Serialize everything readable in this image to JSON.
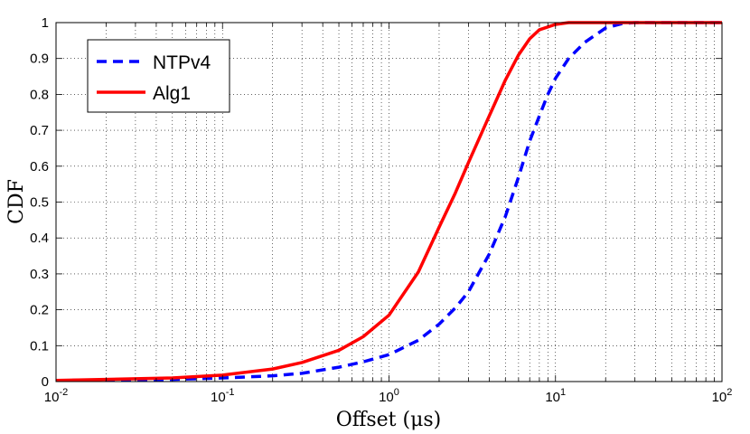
{
  "chart_data": {
    "type": "line",
    "title": "",
    "xlabel": "Offset (μs)",
    "ylabel": "CDF",
    "xscale": "log",
    "xlim": [
      0.01,
      100
    ],
    "ylim": [
      0,
      1
    ],
    "grid": true,
    "legend_position": "top-left",
    "x_ticks": [
      {
        "value": 0.01,
        "base": "10",
        "exp": "-2"
      },
      {
        "value": 0.1,
        "base": "10",
        "exp": "-1"
      },
      {
        "value": 1,
        "base": "10",
        "exp": "0"
      },
      {
        "value": 10,
        "base": "10",
        "exp": "1"
      },
      {
        "value": 100,
        "base": "10",
        "exp": "2"
      }
    ],
    "y_ticks": [
      "0",
      "0.1",
      "0.2",
      "0.3",
      "0.4",
      "0.5",
      "0.6",
      "0.7",
      "0.8",
      "0.9",
      "1"
    ],
    "series": [
      {
        "name": "NTPv4",
        "color": "#0000ff",
        "style": "dashed",
        "x": [
          0.01,
          0.05,
          0.1,
          0.2,
          0.3,
          0.5,
          0.7,
          1,
          1.5,
          2,
          2.5,
          3,
          4,
          5,
          6,
          7,
          8,
          9,
          10,
          12,
          15,
          20,
          25,
          30,
          100
        ],
        "y": [
          0.003,
          0.006,
          0.01,
          0.016,
          0.023,
          0.04,
          0.055,
          0.075,
          0.115,
          0.16,
          0.205,
          0.25,
          0.355,
          0.46,
          0.57,
          0.67,
          0.74,
          0.8,
          0.845,
          0.9,
          0.945,
          0.985,
          0.997,
          1.0,
          1.0
        ]
      },
      {
        "name": "Alg1",
        "color": "#ff0000",
        "style": "solid",
        "x": [
          0.01,
          0.05,
          0.1,
          0.2,
          0.3,
          0.5,
          0.7,
          1,
          1.5,
          2,
          2.5,
          3,
          4,
          5,
          6,
          7,
          8,
          10,
          12,
          100
        ],
        "y": [
          0.003,
          0.01,
          0.018,
          0.035,
          0.053,
          0.087,
          0.125,
          0.185,
          0.305,
          0.43,
          0.525,
          0.61,
          0.74,
          0.84,
          0.91,
          0.955,
          0.98,
          0.995,
          1.0,
          1.0
        ]
      }
    ]
  }
}
